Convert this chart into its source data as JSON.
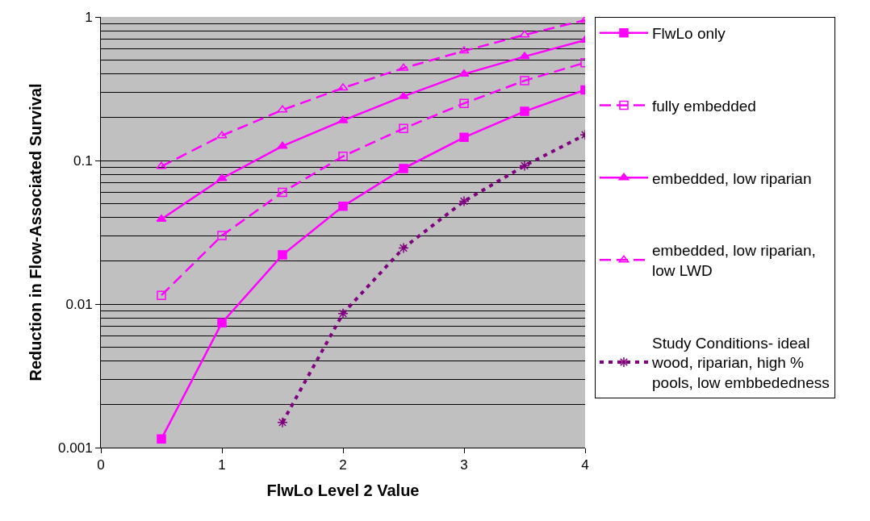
{
  "chart_data": {
    "type": "line",
    "xlabel": "FlwLo Level 2 Value",
    "ylabel": "Reduction in Flow-Associated Survival",
    "x": [
      0.5,
      1,
      1.5,
      2,
      2.5,
      3,
      3.5,
      4
    ],
    "series": [
      {
        "name": "FlwLo only",
        "color": "#ff00ff",
        "marker": "square",
        "line_style": "solid",
        "values": [
          0.00115,
          0.0074,
          0.022,
          0.048,
          0.088,
          0.145,
          0.22,
          0.31
        ]
      },
      {
        "name": "fully embedded",
        "color": "#ff00ff",
        "marker": "square-open",
        "line_style": "dashed",
        "values": [
          0.0115,
          0.03,
          0.06,
          0.107,
          0.167,
          0.25,
          0.36,
          0.48
        ]
      },
      {
        "name": "embedded, low riparian",
        "color": "#ff00ff",
        "marker": "triangle",
        "line_style": "solid",
        "values": [
          0.039,
          0.075,
          0.126,
          0.19,
          0.28,
          0.4,
          0.53,
          0.69
        ]
      },
      {
        "name": "embedded, low riparian, low LWD",
        "color": "#ff00ff",
        "marker": "triangle-open",
        "line_style": "dashed",
        "values": [
          0.091,
          0.149,
          0.225,
          0.32,
          0.44,
          0.58,
          0.75,
          0.95
        ]
      },
      {
        "name": "Study Conditions- ideal wood, riparian, high % pools, low embbededness",
        "color": "#800080",
        "marker": "cross",
        "line_style": "dotted",
        "values": [
          null,
          null,
          0.0015,
          0.0086,
          0.0246,
          0.052,
          0.092,
          0.151
        ]
      }
    ],
    "log": "y",
    "xlim": [
      0,
      4
    ],
    "xticks": [
      0,
      1,
      2,
      3,
      4
    ],
    "ylim": [
      0.001,
      1
    ],
    "yticks": [
      0.001,
      0.01,
      0.1,
      1
    ],
    "grid": "y",
    "legend": "right"
  }
}
